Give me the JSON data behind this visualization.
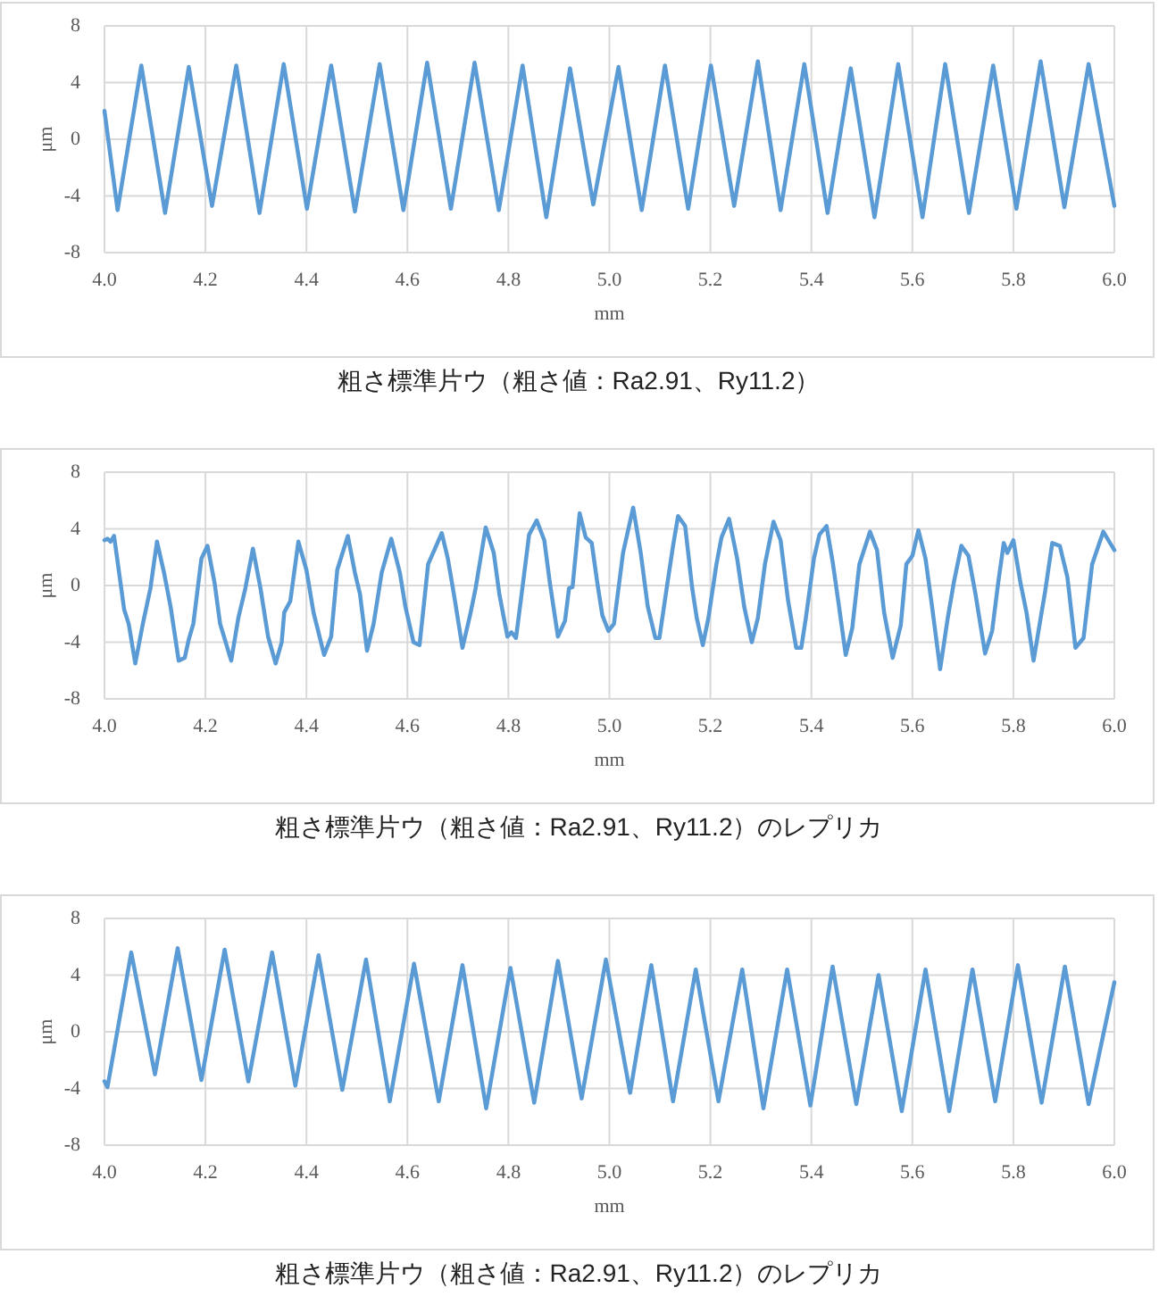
{
  "chart_data": [
    {
      "type": "line",
      "xlabel": "mm",
      "ylabel": "μm",
      "color": "#5b9bd5",
      "grid": true,
      "xlim": [
        4,
        6
      ],
      "ylim": [
        -8,
        8
      ],
      "xticks": [
        {
          "value": 4,
          "label": "4.0"
        },
        {
          "value": 4.2,
          "label": "4.2"
        },
        {
          "value": 4.4,
          "label": "4.4"
        },
        {
          "value": 4.6,
          "label": "4.6"
        },
        {
          "value": 4.8,
          "label": "4.8"
        },
        {
          "value": 5,
          "label": "5.0"
        },
        {
          "value": 5.2,
          "label": "5.2"
        },
        {
          "value": 5.4,
          "label": "5.4"
        },
        {
          "value": 5.6,
          "label": "5.6"
        },
        {
          "value": 5.8,
          "label": "5.8"
        },
        {
          "value": 6,
          "label": "6.0"
        }
      ],
      "yticks": [
        -8,
        -4,
        0,
        4,
        8
      ],
      "x": [
        4.0,
        4.026,
        4.073,
        4.12,
        4.167,
        4.213,
        4.261,
        4.307,
        4.355,
        4.401,
        4.449,
        4.496,
        4.545,
        4.592,
        4.639,
        4.686,
        4.733,
        4.781,
        4.828,
        4.875,
        4.922,
        4.968,
        5.018,
        5.064,
        5.11,
        5.156,
        5.201,
        5.247,
        5.294,
        5.339,
        5.386,
        5.432,
        5.478,
        5.525,
        5.572,
        5.62,
        5.665,
        5.712,
        5.76,
        5.806,
        5.854,
        5.901,
        5.949,
        6.0
      ],
      "values": [
        2.0,
        -5.0,
        5.2,
        -5.2,
        5.1,
        -4.7,
        5.2,
        -5.2,
        5.3,
        -4.9,
        5.2,
        -5.1,
        5.3,
        -5.0,
        5.4,
        -4.9,
        5.4,
        -5.0,
        5.2,
        -5.5,
        5.0,
        -4.6,
        5.1,
        -5.0,
        5.2,
        -4.9,
        5.2,
        -4.7,
        5.5,
        -5.0,
        5.3,
        -5.2,
        5.0,
        -5.5,
        5.3,
        -5.5,
        5.3,
        -5.2,
        5.2,
        -4.9,
        5.5,
        -4.8,
        5.3,
        -4.7
      ],
      "annotations": [
        "粗さ標準片ウ（粗さ値：Ra2.91、Ry11.2）"
      ]
    },
    {
      "type": "line",
      "xlabel": "mm",
      "ylabel": "μm",
      "color": "#5b9bd5",
      "grid": true,
      "xlim": [
        4,
        6
      ],
      "ylim": [
        -8,
        8
      ],
      "xticks": [
        {
          "value": 4,
          "label": "4.0"
        },
        {
          "value": 4.2,
          "label": "4.2"
        },
        {
          "value": 4.4,
          "label": "4.4"
        },
        {
          "value": 4.6,
          "label": "4.6"
        },
        {
          "value": 4.8,
          "label": "4.8"
        },
        {
          "value": 5,
          "label": "5.0"
        },
        {
          "value": 5.2,
          "label": "5.2"
        },
        {
          "value": 5.4,
          "label": "5.4"
        },
        {
          "value": 5.6,
          "label": "5.6"
        },
        {
          "value": 5.8,
          "label": "5.8"
        },
        {
          "value": 6,
          "label": "6.0"
        }
      ],
      "yticks": [
        -8,
        -4,
        0,
        4,
        8
      ],
      "x": [
        4.0,
        4.006,
        4.012,
        4.019,
        4.029,
        4.039,
        4.048,
        4.061,
        4.076,
        4.091,
        4.104,
        4.118,
        4.131,
        4.147,
        4.159,
        4.167,
        4.176,
        4.192,
        4.204,
        4.218,
        4.229,
        4.251,
        4.265,
        4.279,
        4.294,
        4.309,
        4.324,
        4.339,
        4.351,
        4.356,
        4.368,
        4.384,
        4.4,
        4.414,
        4.435,
        4.449,
        4.461,
        4.482,
        4.496,
        4.506,
        4.52,
        4.533,
        4.549,
        4.568,
        4.585,
        4.596,
        4.612,
        4.624,
        4.641,
        4.668,
        4.68,
        4.692,
        4.709,
        4.724,
        4.735,
        4.755,
        4.771,
        4.782,
        4.798,
        4.806,
        4.815,
        4.829,
        4.841,
        4.856,
        4.871,
        4.882,
        4.898,
        4.912,
        4.92,
        4.927,
        4.941,
        4.953,
        4.965,
        4.976,
        4.986,
        4.998,
        5.009,
        5.027,
        5.047,
        5.062,
        5.076,
        5.091,
        5.099,
        5.115,
        5.126,
        5.136,
        5.15,
        5.164,
        5.173,
        5.185,
        5.196,
        5.212,
        5.222,
        5.237,
        5.253,
        5.267,
        5.282,
        5.294,
        5.308,
        5.325,
        5.339,
        5.354,
        5.37,
        5.38,
        5.389,
        5.405,
        5.416,
        5.43,
        5.442,
        5.454,
        5.468,
        5.481,
        5.495,
        5.516,
        5.53,
        5.544,
        5.561,
        5.577,
        5.588,
        5.6,
        5.612,
        5.626,
        5.639,
        5.655,
        5.67,
        5.682,
        5.697,
        5.711,
        5.725,
        5.744,
        5.758,
        5.77,
        5.781,
        5.788,
        5.8,
        5.814,
        5.826,
        5.84,
        5.854,
        5.863,
        5.877,
        5.892,
        5.907,
        5.923,
        5.939,
        5.956,
        5.978,
        6.0
      ],
      "values": [
        3.2,
        3.3,
        3.1,
        3.5,
        0.9,
        -1.7,
        -2.7,
        -5.5,
        -2.7,
        -0.2,
        3.1,
        0.9,
        -1.5,
        -5.3,
        -5.1,
        -3.8,
        -2.7,
        1.9,
        2.8,
        0.2,
        -2.7,
        -5.3,
        -2.3,
        -0.2,
        2.6,
        -0.2,
        -3.6,
        -5.5,
        -4.0,
        -1.9,
        -1.1,
        3.1,
        1.1,
        -1.9,
        -4.9,
        -3.6,
        1.1,
        3.5,
        0.9,
        -0.6,
        -4.6,
        -2.7,
        0.9,
        3.3,
        0.9,
        -1.5,
        -4.0,
        -4.2,
        1.5,
        3.7,
        1.9,
        -0.6,
        -4.4,
        -2.1,
        -0.2,
        4.1,
        2.3,
        -0.6,
        -3.6,
        -3.3,
        -3.7,
        0.2,
        3.6,
        4.6,
        3.2,
        0.2,
        -3.6,
        -2.5,
        -0.2,
        -0.1,
        5.1,
        3.4,
        3.0,
        0.2,
        -2.1,
        -3.2,
        -2.7,
        2.3,
        5.5,
        2.3,
        -1.5,
        -3.7,
        -3.7,
        0.2,
        2.8,
        4.9,
        4.2,
        -0.2,
        -2.3,
        -4.2,
        -2.3,
        1.5,
        3.4,
        4.7,
        1.9,
        -1.5,
        -4.0,
        -2.3,
        1.5,
        4.5,
        3.2,
        -1.1,
        -4.4,
        -4.4,
        -2.3,
        1.9,
        3.6,
        4.2,
        1.7,
        -1.3,
        -4.9,
        -3.0,
        1.5,
        3.8,
        2.5,
        -1.9,
        -5.1,
        -2.8,
        1.5,
        2.1,
        3.9,
        1.9,
        -1.5,
        -5.9,
        -2.3,
        0.2,
        2.8,
        2.1,
        -0.6,
        -4.8,
        -3.2,
        0.2,
        3.0,
        2.3,
        3.2,
        0.2,
        -1.9,
        -5.3,
        -2.3,
        -0.4,
        3.0,
        2.8,
        0.6,
        -4.4,
        -3.7,
        1.5,
        3.8,
        2.5
      ],
      "annotations": [
        "粗さ標準片ウ（粗さ値：Ra2.91、Ry11.2）のレプリカ"
      ]
    },
    {
      "type": "line",
      "xlabel": "mm",
      "ylabel": "μm",
      "color": "#5b9bd5",
      "grid": true,
      "xlim": [
        4,
        6
      ],
      "ylim": [
        -8,
        8
      ],
      "xticks": [
        {
          "value": 4,
          "label": "4.0"
        },
        {
          "value": 4.2,
          "label": "4.2"
        },
        {
          "value": 4.4,
          "label": "4.4"
        },
        {
          "value": 4.6,
          "label": "4.6"
        },
        {
          "value": 4.8,
          "label": "4.8"
        },
        {
          "value": 5,
          "label": "5.0"
        },
        {
          "value": 5.2,
          "label": "5.2"
        },
        {
          "value": 5.4,
          "label": "5.4"
        },
        {
          "value": 5.6,
          "label": "5.6"
        },
        {
          "value": 5.8,
          "label": "5.8"
        },
        {
          "value": 6,
          "label": "6.0"
        }
      ],
      "yticks": [
        -8,
        -4,
        0,
        4,
        8
      ],
      "x": [
        4.0,
        4.006,
        4.053,
        4.1,
        4.145,
        4.192,
        4.238,
        4.285,
        4.332,
        4.378,
        4.424,
        4.471,
        4.518,
        4.565,
        4.613,
        4.662,
        4.709,
        4.756,
        4.804,
        4.851,
        4.898,
        4.945,
        4.993,
        5.041,
        5.083,
        5.126,
        5.171,
        5.216,
        5.263,
        5.305,
        5.352,
        5.398,
        5.442,
        5.489,
        5.533,
        5.579,
        5.626,
        5.673,
        5.719,
        5.764,
        5.809,
        5.856,
        5.902,
        5.949,
        6.0
      ],
      "values": [
        -3.5,
        -3.9,
        5.6,
        -3.0,
        5.9,
        -3.4,
        5.8,
        -3.5,
        5.6,
        -3.8,
        5.4,
        -4.1,
        5.1,
        -4.9,
        4.8,
        -4.9,
        4.7,
        -5.4,
        4.5,
        -5.0,
        5.0,
        -4.7,
        5.1,
        -4.3,
        4.7,
        -4.9,
        4.4,
        -4.9,
        4.4,
        -5.4,
        4.4,
        -5.2,
        4.6,
        -5.1,
        4.0,
        -5.6,
        4.4,
        -5.6,
        4.4,
        -4.9,
        4.7,
        -5.0,
        4.6,
        -5.1,
        3.5
      ],
      "annotations": [
        "粗さ標準片ウ（粗さ値：Ra2.91、Ry11.2）のレプリカ"
      ]
    }
  ]
}
